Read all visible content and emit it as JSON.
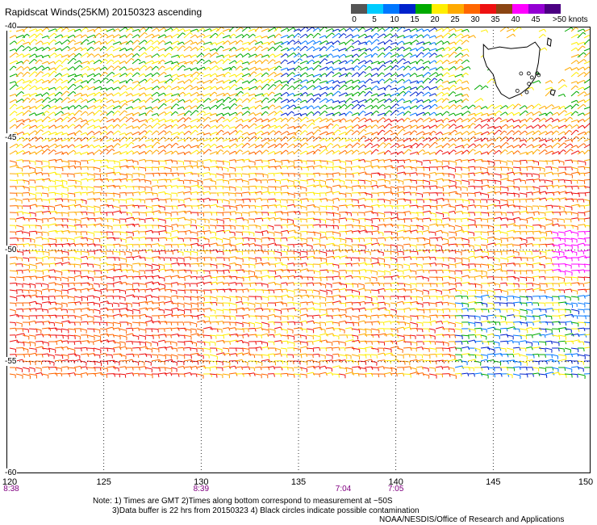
{
  "header": {
    "title": "Rapidscat Winds(25KM) 20150323 ascending"
  },
  "colorbar": {
    "ticks": [
      "0",
      "5",
      "10",
      "15",
      "20",
      "25",
      "30",
      "35",
      "40",
      "45",
      ">50 knots"
    ],
    "colors": [
      "#555555",
      "#00ccff",
      "#0077ff",
      "#0022cc",
      "#00aa00",
      "#ffee00",
      "#ffaa00",
      "#ff6600",
      "#ee1111",
      "#8b4513",
      "#ff00ff",
      "#9400d3",
      "#4b0082"
    ]
  },
  "map": {
    "lat_labels": [
      "-40",
      "-45",
      "-50",
      "-55",
      "-60"
    ],
    "lon_labels": [
      "120",
      "125",
      "130",
      "135",
      "140",
      "145",
      "150"
    ],
    "time_labels": [
      {
        "lon": 120,
        "text": "8:38"
      },
      {
        "lon": 130,
        "text": "8:39"
      },
      {
        "lon": 137.3,
        "text": "7:04"
      },
      {
        "lon": 140,
        "text": "7:05"
      }
    ],
    "extent": {
      "lon_min": 120,
      "lon_max": 150,
      "lat_min": -60,
      "lat_max": -40
    },
    "landmass": "Tasmania"
  },
  "footer": {
    "notes": [
      "Note: 1) Times are GMT 2)Times along bottom correspond to measurement at ~50S",
      "3)Data buffer is 22 hrs from 20150323 4) Black circles indicate possible contamination"
    ],
    "credit": "NOAA/NESDIS/Office of Research and Applications"
  }
}
